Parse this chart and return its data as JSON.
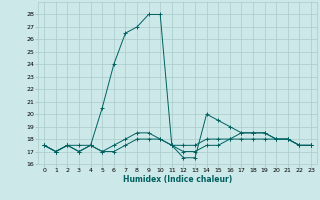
{
  "title": "",
  "xlabel": "Humidex (Indice chaleur)",
  "ylabel": "",
  "bg_color": "#cce8e8",
  "grid_color": "#aacccc",
  "line_color": "#006060",
  "xlim": [
    -0.5,
    23.5
  ],
  "ylim": [
    16,
    29
  ],
  "yticks": [
    16,
    17,
    18,
    19,
    20,
    21,
    22,
    23,
    24,
    25,
    26,
    27,
    28
  ],
  "xticks": [
    0,
    1,
    2,
    3,
    4,
    5,
    6,
    7,
    8,
    9,
    10,
    11,
    12,
    13,
    14,
    15,
    16,
    17,
    18,
    19,
    20,
    21,
    22,
    23
  ],
  "series1_x": [
    0,
    1,
    2,
    3,
    4,
    5,
    6,
    7,
    8,
    9,
    10,
    11,
    12,
    13,
    14,
    15,
    16,
    17,
    18,
    19,
    20,
    21,
    22,
    23
  ],
  "series1_y": [
    17.5,
    17.0,
    17.5,
    17.5,
    17.5,
    17.0,
    17.5,
    18.0,
    18.5,
    18.5,
    18.0,
    17.5,
    17.5,
    17.5,
    18.0,
    18.0,
    18.0,
    18.0,
    18.0,
    18.0,
    18.0,
    18.0,
    17.5,
    17.5
  ],
  "series2_x": [
    0,
    1,
    2,
    3,
    4,
    5,
    6,
    7,
    8,
    9,
    10,
    11,
    12,
    13,
    14,
    15,
    16,
    17,
    18,
    19,
    20,
    21,
    22,
    23
  ],
  "series2_y": [
    17.5,
    17.0,
    17.5,
    17.0,
    17.5,
    20.5,
    24.0,
    26.5,
    27.0,
    28.0,
    28.0,
    17.5,
    16.5,
    16.5,
    20.0,
    19.5,
    19.0,
    18.5,
    18.5,
    18.5,
    18.0,
    18.0,
    17.5,
    17.5
  ],
  "series3_x": [
    0,
    1,
    2,
    3,
    4,
    5,
    6,
    7,
    8,
    9,
    10,
    11,
    12,
    13,
    14,
    15,
    16,
    17,
    18,
    19,
    20,
    21,
    22,
    23
  ],
  "series3_y": [
    17.5,
    17.0,
    17.5,
    17.0,
    17.5,
    17.0,
    17.0,
    17.5,
    18.0,
    18.0,
    18.0,
    17.5,
    17.0,
    17.0,
    17.5,
    17.5,
    18.0,
    18.5,
    18.5,
    18.5,
    18.0,
    18.0,
    17.5,
    17.5
  ]
}
